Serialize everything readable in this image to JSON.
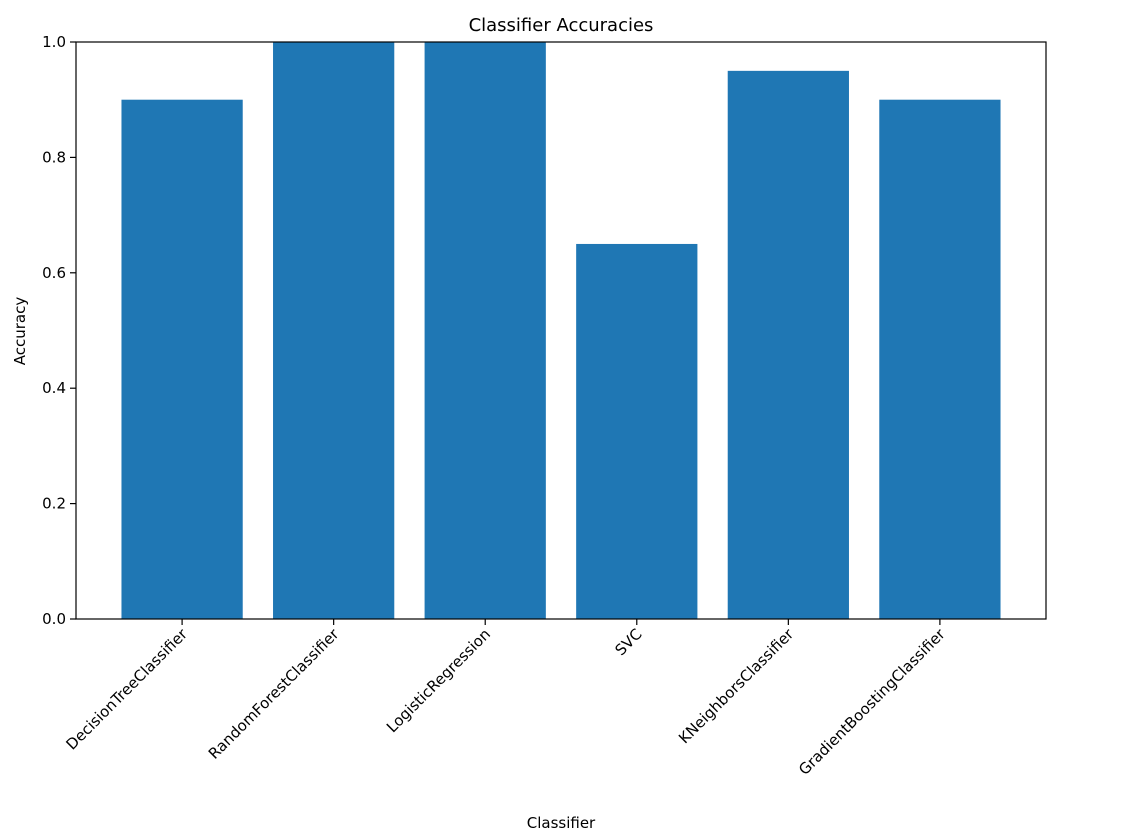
{
  "chart_data": {
    "type": "bar",
    "title": "Classifier Accuracies",
    "xlabel": "Classifier",
    "ylabel": "Accuracy",
    "categories": [
      "DecisionTreeClassifier",
      "RandomForestClassifier",
      "LogisticRegression",
      "SVC",
      "KNeighborsClassifier",
      "GradientBoostingClassifier"
    ],
    "values": [
      0.9,
      1.0,
      1.0,
      0.65,
      0.95,
      0.9
    ],
    "ylim": [
      0.0,
      1.0
    ],
    "yticks": [
      "0.0",
      "0.2",
      "0.4",
      "0.6",
      "0.8",
      "1.0"
    ],
    "bar_color": "#1f77b4",
    "grid": false,
    "legend": "none"
  }
}
